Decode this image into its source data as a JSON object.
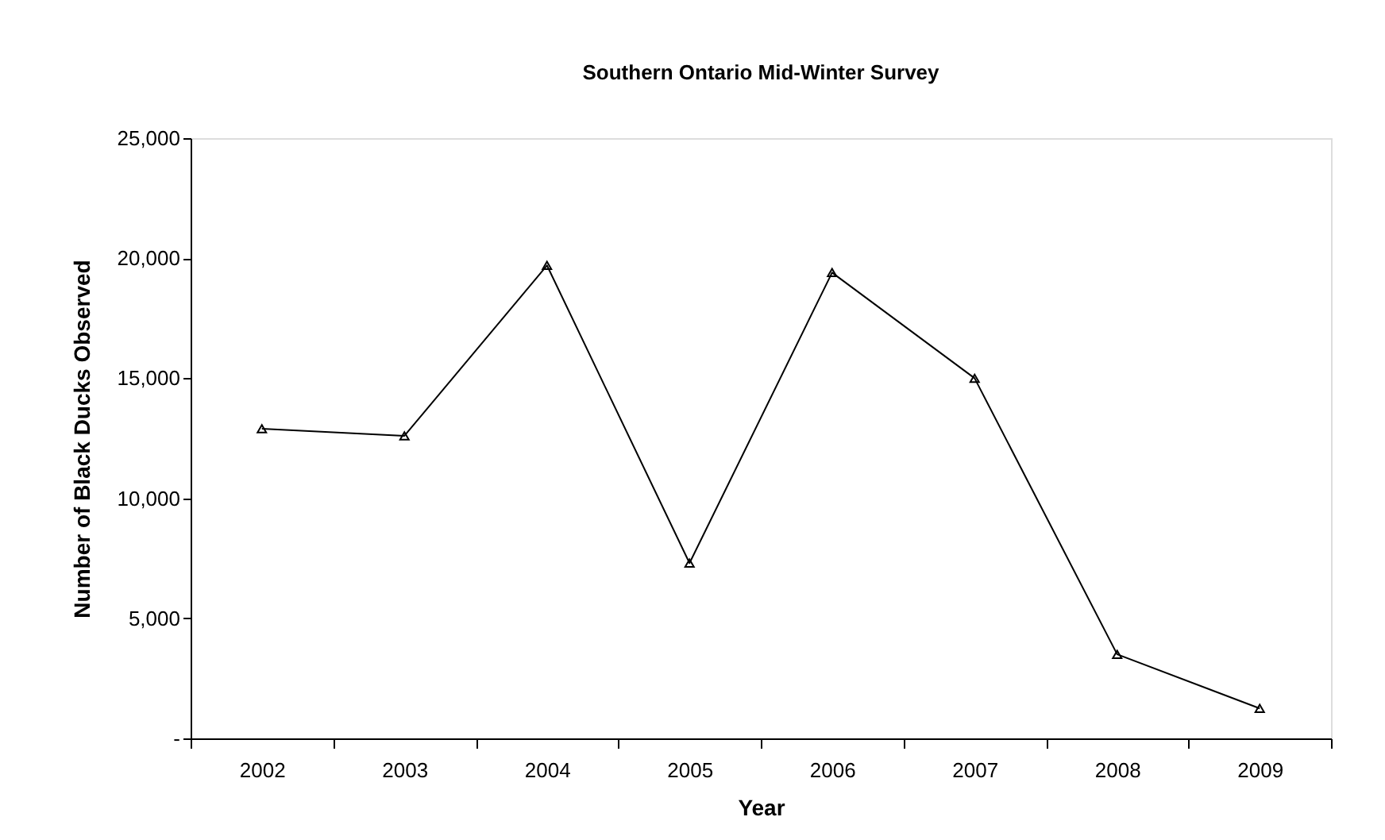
{
  "chart_data": {
    "type": "line",
    "title": "Southern Ontario Mid-Winter Survey",
    "xlabel": "Year",
    "ylabel": "Number of Black Ducks Observed",
    "categories": [
      "2002",
      "2003",
      "2004",
      "2005",
      "2006",
      "2007",
      "2008",
      "2009"
    ],
    "series": [
      {
        "color": "#000000",
        "values": [
          12900,
          12600,
          19700,
          7300,
          19400,
          15000,
          3500,
          1250
        ]
      }
    ],
    "ylim": [
      0,
      25000
    ],
    "yticks": [
      {
        "value": 0,
        "label": "-"
      },
      {
        "value": 5000,
        "label": "5,000"
      },
      {
        "value": 10000,
        "label": "10,000"
      },
      {
        "value": 15000,
        "label": "15,000"
      },
      {
        "value": 20000,
        "label": "20,000"
      },
      {
        "value": 25000,
        "label": "25,000"
      }
    ],
    "grid": false,
    "marker": "triangle",
    "line_style": "solid"
  }
}
